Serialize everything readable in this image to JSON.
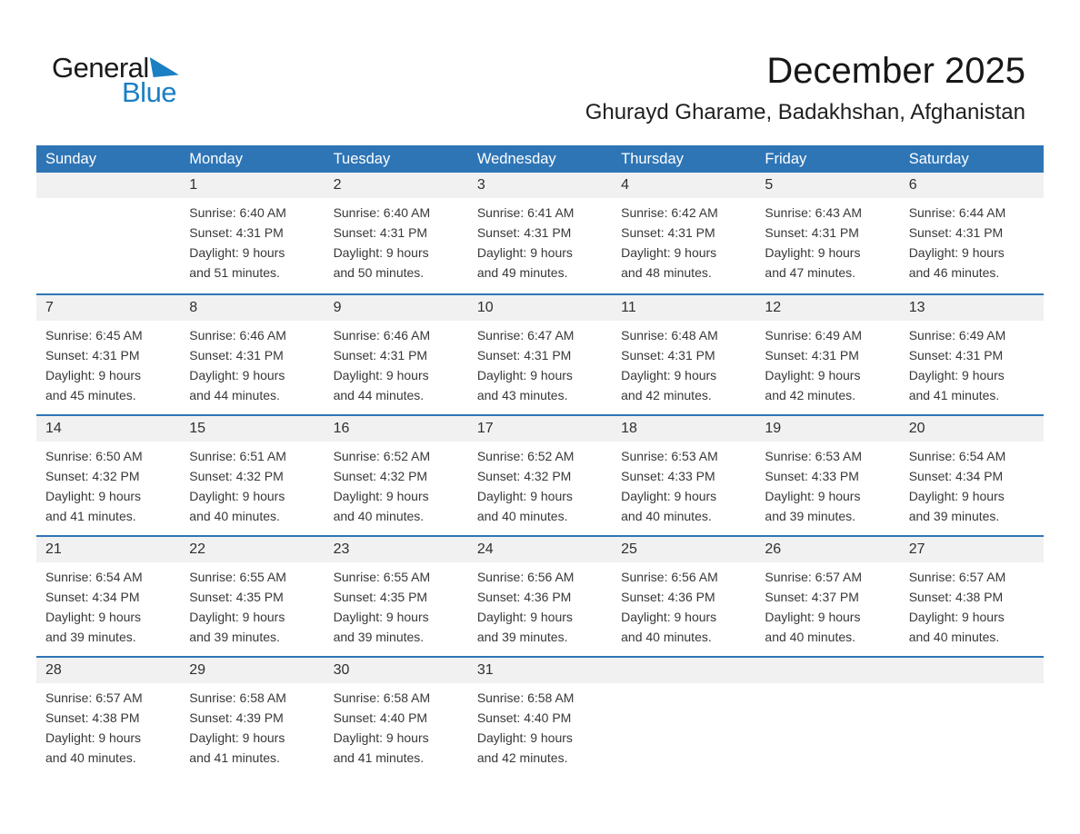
{
  "logo": {
    "general": "General",
    "blue": "Blue"
  },
  "header": {
    "title": "December 2025",
    "subtitle": "Ghurayd Gharame, Badakhshan, Afghanistan"
  },
  "colors": {
    "accent_blue": "#2e75b6",
    "logo_blue": "#1b7fc4",
    "band_gray": "#f1f1f1",
    "text_dark": "#383838"
  },
  "calendar": {
    "weekdays": [
      "Sunday",
      "Monday",
      "Tuesday",
      "Wednesday",
      "Thursday",
      "Friday",
      "Saturday"
    ],
    "weeks": [
      {
        "cells": [
          {
            "day": ""
          },
          {
            "day": "1",
            "sunrise": "Sunrise: 6:40 AM",
            "sunset": "Sunset: 4:31 PM",
            "daylight_line1": "Daylight: 9 hours",
            "daylight_line2": "and 51 minutes."
          },
          {
            "day": "2",
            "sunrise": "Sunrise: 6:40 AM",
            "sunset": "Sunset: 4:31 PM",
            "daylight_line1": "Daylight: 9 hours",
            "daylight_line2": "and 50 minutes."
          },
          {
            "day": "3",
            "sunrise": "Sunrise: 6:41 AM",
            "sunset": "Sunset: 4:31 PM",
            "daylight_line1": "Daylight: 9 hours",
            "daylight_line2": "and 49 minutes."
          },
          {
            "day": "4",
            "sunrise": "Sunrise: 6:42 AM",
            "sunset": "Sunset: 4:31 PM",
            "daylight_line1": "Daylight: 9 hours",
            "daylight_line2": "and 48 minutes."
          },
          {
            "day": "5",
            "sunrise": "Sunrise: 6:43 AM",
            "sunset": "Sunset: 4:31 PM",
            "daylight_line1": "Daylight: 9 hours",
            "daylight_line2": "and 47 minutes."
          },
          {
            "day": "6",
            "sunrise": "Sunrise: 6:44 AM",
            "sunset": "Sunset: 4:31 PM",
            "daylight_line1": "Daylight: 9 hours",
            "daylight_line2": "and 46 minutes."
          }
        ]
      },
      {
        "cells": [
          {
            "day": "7",
            "sunrise": "Sunrise: 6:45 AM",
            "sunset": "Sunset: 4:31 PM",
            "daylight_line1": "Daylight: 9 hours",
            "daylight_line2": "and 45 minutes."
          },
          {
            "day": "8",
            "sunrise": "Sunrise: 6:46 AM",
            "sunset": "Sunset: 4:31 PM",
            "daylight_line1": "Daylight: 9 hours",
            "daylight_line2": "and 44 minutes."
          },
          {
            "day": "9",
            "sunrise": "Sunrise: 6:46 AM",
            "sunset": "Sunset: 4:31 PM",
            "daylight_line1": "Daylight: 9 hours",
            "daylight_line2": "and 44 minutes."
          },
          {
            "day": "10",
            "sunrise": "Sunrise: 6:47 AM",
            "sunset": "Sunset: 4:31 PM",
            "daylight_line1": "Daylight: 9 hours",
            "daylight_line2": "and 43 minutes."
          },
          {
            "day": "11",
            "sunrise": "Sunrise: 6:48 AM",
            "sunset": "Sunset: 4:31 PM",
            "daylight_line1": "Daylight: 9 hours",
            "daylight_line2": "and 42 minutes."
          },
          {
            "day": "12",
            "sunrise": "Sunrise: 6:49 AM",
            "sunset": "Sunset: 4:31 PM",
            "daylight_line1": "Daylight: 9 hours",
            "daylight_line2": "and 42 minutes."
          },
          {
            "day": "13",
            "sunrise": "Sunrise: 6:49 AM",
            "sunset": "Sunset: 4:31 PM",
            "daylight_line1": "Daylight: 9 hours",
            "daylight_line2": "and 41 minutes."
          }
        ]
      },
      {
        "cells": [
          {
            "day": "14",
            "sunrise": "Sunrise: 6:50 AM",
            "sunset": "Sunset: 4:32 PM",
            "daylight_line1": "Daylight: 9 hours",
            "daylight_line2": "and 41 minutes."
          },
          {
            "day": "15",
            "sunrise": "Sunrise: 6:51 AM",
            "sunset": "Sunset: 4:32 PM",
            "daylight_line1": "Daylight: 9 hours",
            "daylight_line2": "and 40 minutes."
          },
          {
            "day": "16",
            "sunrise": "Sunrise: 6:52 AM",
            "sunset": "Sunset: 4:32 PM",
            "daylight_line1": "Daylight: 9 hours",
            "daylight_line2": "and 40 minutes."
          },
          {
            "day": "17",
            "sunrise": "Sunrise: 6:52 AM",
            "sunset": "Sunset: 4:32 PM",
            "daylight_line1": "Daylight: 9 hours",
            "daylight_line2": "and 40 minutes."
          },
          {
            "day": "18",
            "sunrise": "Sunrise: 6:53 AM",
            "sunset": "Sunset: 4:33 PM",
            "daylight_line1": "Daylight: 9 hours",
            "daylight_line2": "and 40 minutes."
          },
          {
            "day": "19",
            "sunrise": "Sunrise: 6:53 AM",
            "sunset": "Sunset: 4:33 PM",
            "daylight_line1": "Daylight: 9 hours",
            "daylight_line2": "and 39 minutes."
          },
          {
            "day": "20",
            "sunrise": "Sunrise: 6:54 AM",
            "sunset": "Sunset: 4:34 PM",
            "daylight_line1": "Daylight: 9 hours",
            "daylight_line2": "and 39 minutes."
          }
        ]
      },
      {
        "cells": [
          {
            "day": "21",
            "sunrise": "Sunrise: 6:54 AM",
            "sunset": "Sunset: 4:34 PM",
            "daylight_line1": "Daylight: 9 hours",
            "daylight_line2": "and 39 minutes."
          },
          {
            "day": "22",
            "sunrise": "Sunrise: 6:55 AM",
            "sunset": "Sunset: 4:35 PM",
            "daylight_line1": "Daylight: 9 hours",
            "daylight_line2": "and 39 minutes."
          },
          {
            "day": "23",
            "sunrise": "Sunrise: 6:55 AM",
            "sunset": "Sunset: 4:35 PM",
            "daylight_line1": "Daylight: 9 hours",
            "daylight_line2": "and 39 minutes."
          },
          {
            "day": "24",
            "sunrise": "Sunrise: 6:56 AM",
            "sunset": "Sunset: 4:36 PM",
            "daylight_line1": "Daylight: 9 hours",
            "daylight_line2": "and 39 minutes."
          },
          {
            "day": "25",
            "sunrise": "Sunrise: 6:56 AM",
            "sunset": "Sunset: 4:36 PM",
            "daylight_line1": "Daylight: 9 hours",
            "daylight_line2": "and 40 minutes."
          },
          {
            "day": "26",
            "sunrise": "Sunrise: 6:57 AM",
            "sunset": "Sunset: 4:37 PM",
            "daylight_line1": "Daylight: 9 hours",
            "daylight_line2": "and 40 minutes."
          },
          {
            "day": "27",
            "sunrise": "Sunrise: 6:57 AM",
            "sunset": "Sunset: 4:38 PM",
            "daylight_line1": "Daylight: 9 hours",
            "daylight_line2": "and 40 minutes."
          }
        ]
      },
      {
        "cells": [
          {
            "day": "28",
            "sunrise": "Sunrise: 6:57 AM",
            "sunset": "Sunset: 4:38 PM",
            "daylight_line1": "Daylight: 9 hours",
            "daylight_line2": "and 40 minutes."
          },
          {
            "day": "29",
            "sunrise": "Sunrise: 6:58 AM",
            "sunset": "Sunset: 4:39 PM",
            "daylight_line1": "Daylight: 9 hours",
            "daylight_line2": "and 41 minutes."
          },
          {
            "day": "30",
            "sunrise": "Sunrise: 6:58 AM",
            "sunset": "Sunset: 4:40 PM",
            "daylight_line1": "Daylight: 9 hours",
            "daylight_line2": "and 41 minutes."
          },
          {
            "day": "31",
            "sunrise": "Sunrise: 6:58 AM",
            "sunset": "Sunset: 4:40 PM",
            "daylight_line1": "Daylight: 9 hours",
            "daylight_line2": "and 42 minutes."
          },
          {
            "day": ""
          },
          {
            "day": ""
          },
          {
            "day": ""
          }
        ]
      }
    ]
  }
}
